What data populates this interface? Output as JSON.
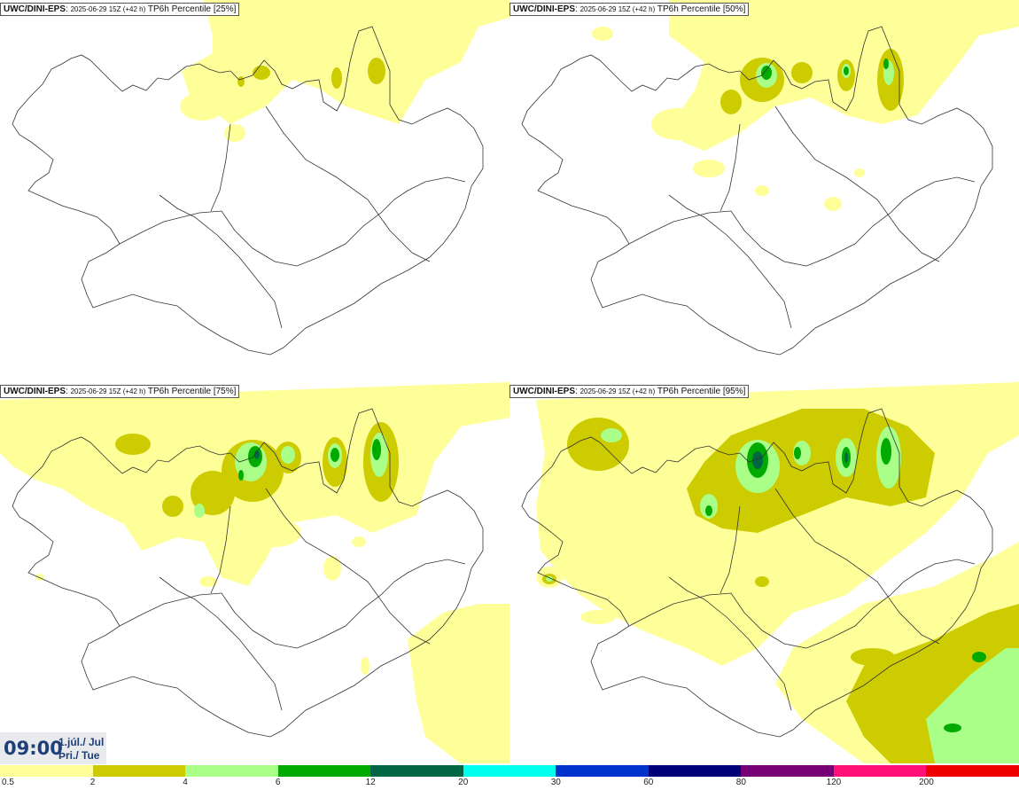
{
  "panels": [
    {
      "model": "UWC/DINI-EPS",
      "sep": ":",
      "run": "2025-06-29 15Z (+42 h)",
      "field": "TP6h Percentile [25%]"
    },
    {
      "model": "UWC/DINI-EPS",
      "sep": ":",
      "run": "2025-06-29 15Z (+42 h)",
      "field": "TP6h Percentile [50%]"
    },
    {
      "model": "UWC/DINI-EPS",
      "sep": ":",
      "run": "2025-06-29 15Z (+42 h)",
      "field": "TP6h Percentile [75%]"
    },
    {
      "model": "UWC/DINI-EPS",
      "sep": ":",
      "run": "2025-06-29 15Z (+42 h)",
      "field": "TP6h Percentile [95%]"
    }
  ],
  "valid_time": {
    "clock": "09:00",
    "date": "1.júl./ Jul",
    "weekday": "Þri./ Tue"
  },
  "legend": {
    "colors": [
      "#ffff99",
      "#cccc00",
      "#aaff88",
      "#00aa00",
      "#006644",
      "#00ffee",
      "#0033cc",
      "#000077",
      "#770077",
      "#ff1177",
      "#ee0000"
    ],
    "labels": [
      "0.5",
      "2",
      "4",
      "6",
      "12",
      "20",
      "30",
      "60",
      "80",
      "120",
      "200"
    ]
  }
}
